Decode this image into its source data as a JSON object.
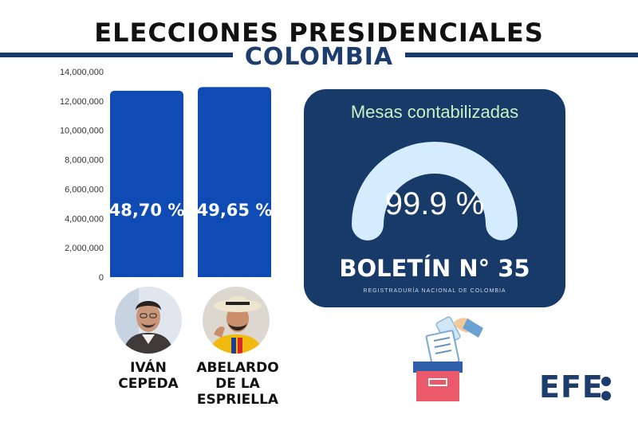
{
  "header": {
    "title": "ELECCIONES PRESIDENCIALES",
    "subtitle": "COLOMBIA"
  },
  "colors": {
    "bar": "#0f4bb5",
    "panel": "#183a68",
    "gauge": "#d5ecff",
    "brand": "#1d3d6f"
  },
  "chart_data": {
    "type": "bar",
    "categories": [
      "IVÁN CEPEDA",
      "ABELARDO DE LA ESPRIELLA"
    ],
    "values": [
      12700000,
      12950000
    ],
    "data_labels": [
      "48,70 %",
      "49,65 %"
    ],
    "ylim": [
      0,
      14000000
    ],
    "yticks": [
      0,
      2000000,
      4000000,
      6000000,
      8000000,
      10000000,
      12000000,
      14000000
    ],
    "ytick_labels": [
      "0",
      "2,000,000",
      "4,000,000",
      "6,000,000",
      "8,000,000",
      "10,000,000",
      "12,000,000",
      "14,000,000"
    ],
    "grid": false
  },
  "candidates": [
    {
      "name_lines": [
        "IVÁN",
        "CEPEDA"
      ]
    },
    {
      "name_lines": [
        "ABELARDO",
        "DE LA",
        "ESPRIELLA"
      ]
    }
  ],
  "counting": {
    "title": "Mesas contabilizadas",
    "percent": 99.9,
    "percent_label": "99.9 %",
    "bulletin": "BOLETÍN N° 35",
    "source": "REGISTRADURÍA NACIONAL DE COLOMBIA"
  },
  "icons": {
    "ballot": "ballot-box-icon",
    "logo_dots": "colon-dots-icon"
  },
  "logo": {
    "text": "EFE"
  }
}
